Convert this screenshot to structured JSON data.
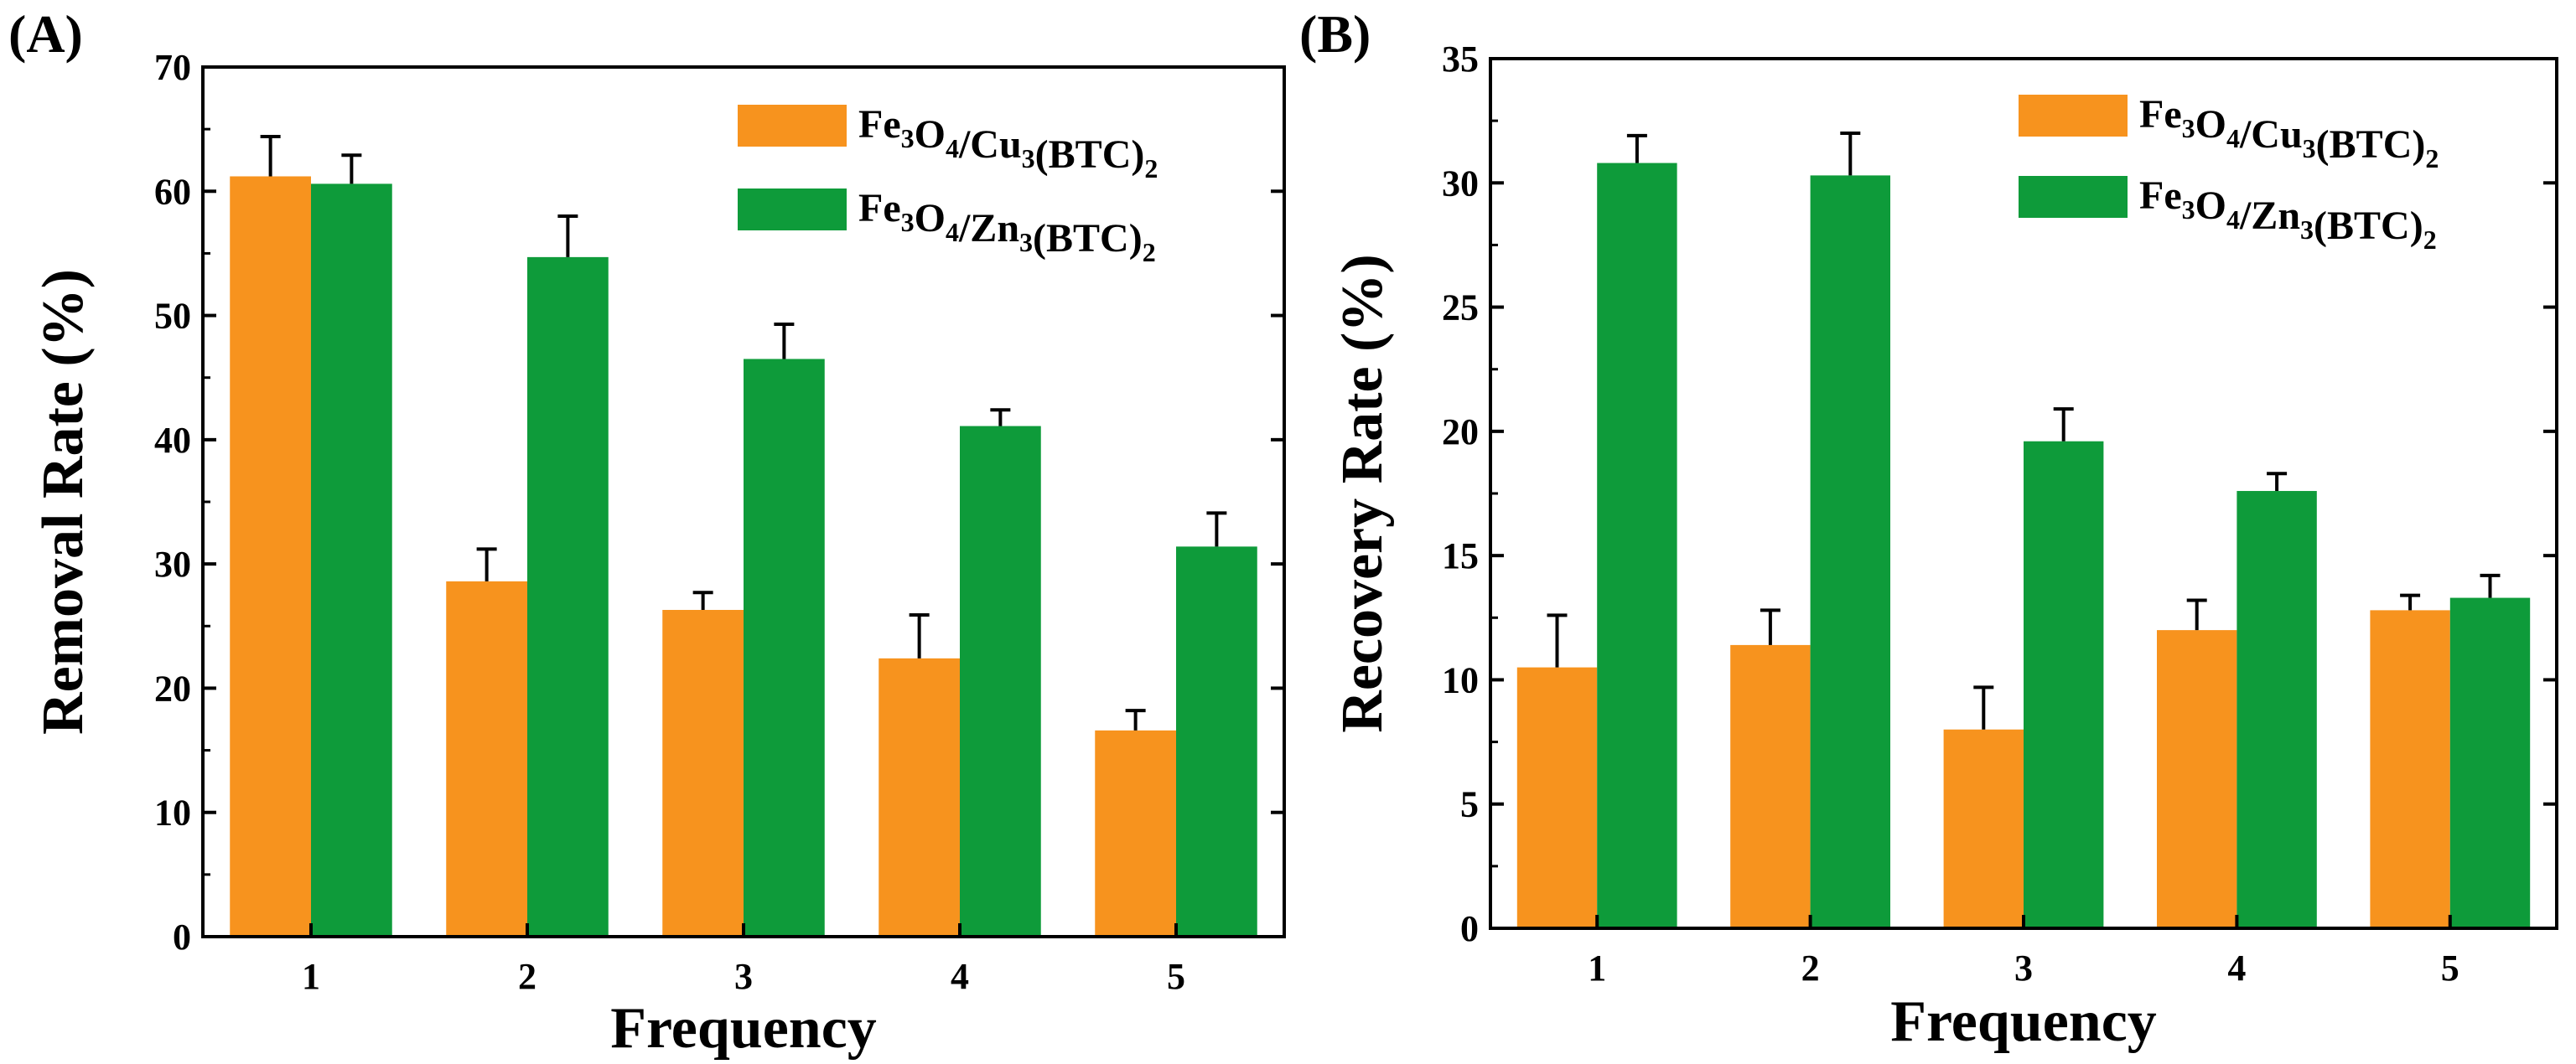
{
  "chart_data": [
    {
      "type": "bar",
      "panel_label": "(A)",
      "title": "",
      "xlabel": "Frequency",
      "ylabel": "Removal Rate (%)",
      "categories": [
        "1",
        "2",
        "3",
        "4",
        "5"
      ],
      "ylim": [
        0,
        70
      ],
      "yticks": [
        "0",
        "10",
        "20",
        "30",
        "40",
        "50",
        "60",
        "70"
      ],
      "ytick_values": [
        0,
        10,
        20,
        30,
        40,
        50,
        60,
        70
      ],
      "legend_position": "top-right",
      "series": [
        {
          "name": "Fe3O4/Cu3(BTC)2",
          "color": "#F7931E",
          "legend_parts": [
            [
              "Fe",
              ""
            ],
            [
              "3",
              "sub"
            ],
            [
              "O",
              ""
            ],
            [
              "4",
              "sub"
            ],
            [
              "/Cu",
              ""
            ],
            [
              "3",
              "sub"
            ],
            [
              "(BTC)",
              ""
            ],
            [
              "2",
              "sub"
            ]
          ],
          "values": [
            61.2,
            28.6,
            26.3,
            22.4,
            16.6
          ],
          "errors": [
            3.2,
            2.6,
            1.4,
            3.5,
            1.6
          ]
        },
        {
          "name": "Fe3O4/Zn3(BTC)2",
          "color": "#0E9B3A",
          "legend_parts": [
            [
              "Fe",
              ""
            ],
            [
              "3",
              "sub"
            ],
            [
              "O",
              ""
            ],
            [
              "4",
              "sub"
            ],
            [
              "/Zn",
              ""
            ],
            [
              "3",
              "sub"
            ],
            [
              "(BTC)",
              ""
            ],
            [
              "2",
              "sub"
            ]
          ],
          "values": [
            60.6,
            54.7,
            46.5,
            41.1,
            31.4
          ],
          "errors": [
            2.3,
            3.3,
            2.8,
            1.3,
            2.7
          ]
        }
      ]
    },
    {
      "type": "bar",
      "panel_label": "(B)",
      "title": "",
      "xlabel": "Frequency",
      "ylabel": "Recovery Rate (%)",
      "categories": [
        "1",
        "2",
        "3",
        "4",
        "5"
      ],
      "ylim": [
        0,
        35
      ],
      "yticks": [
        "0",
        "5",
        "10",
        "15",
        "20",
        "25",
        "30",
        "35"
      ],
      "ytick_values": [
        0,
        5,
        10,
        15,
        20,
        25,
        30,
        35
      ],
      "legend_position": "top-right",
      "series": [
        {
          "name": "Fe3O4/Cu3(BTC)2",
          "color": "#F7931E",
          "legend_parts": [
            [
              "Fe",
              ""
            ],
            [
              "3",
              "sub"
            ],
            [
              "O",
              ""
            ],
            [
              "4",
              "sub"
            ],
            [
              "/Cu",
              ""
            ],
            [
              "3",
              "sub"
            ],
            [
              "(BTC)",
              ""
            ],
            [
              "2",
              "sub"
            ]
          ],
          "values": [
            10.5,
            11.4,
            8.0,
            12.0,
            12.8
          ],
          "errors": [
            2.1,
            1.4,
            1.7,
            1.2,
            0.6
          ]
        },
        {
          "name": "Fe3O4/Zn3(BTC)2",
          "color": "#0E9B3A",
          "legend_parts": [
            [
              "Fe",
              ""
            ],
            [
              "3",
              "sub"
            ],
            [
              "O",
              ""
            ],
            [
              "4",
              "sub"
            ],
            [
              "/Zn",
              ""
            ],
            [
              "3",
              "sub"
            ],
            [
              "(BTC)",
              ""
            ],
            [
              "2",
              "sub"
            ]
          ],
          "values": [
            30.8,
            30.3,
            19.6,
            17.6,
            13.3
          ],
          "errors": [
            1.1,
            1.7,
            1.3,
            0.7,
            0.9
          ]
        }
      ]
    }
  ]
}
